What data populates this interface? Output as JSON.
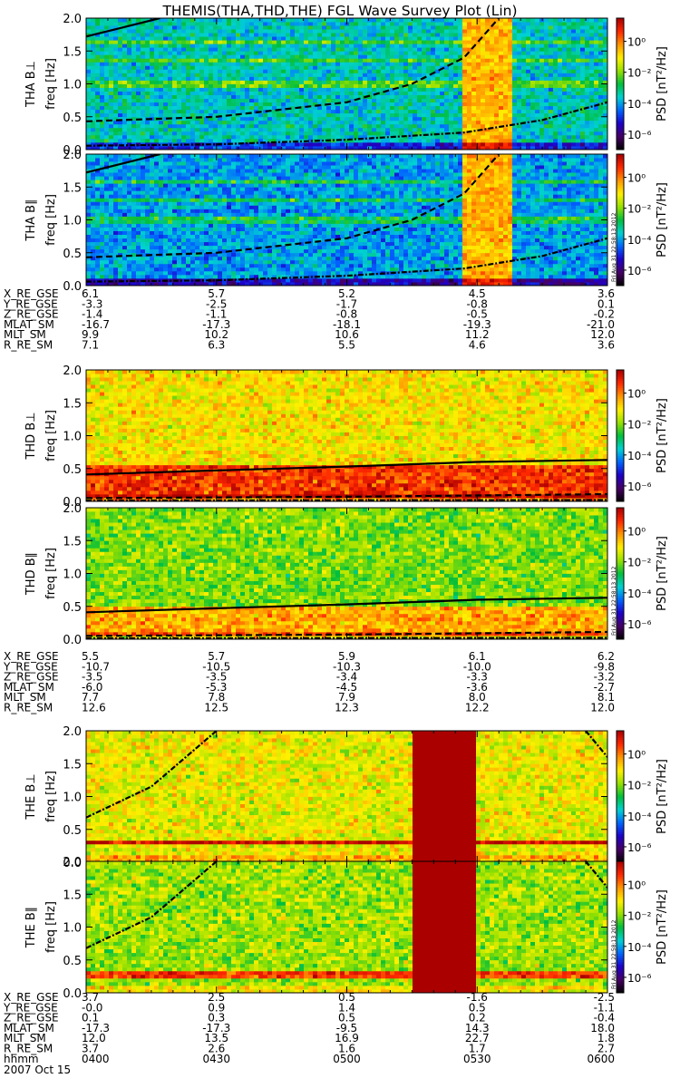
{
  "title": "THEMIS(THA,THD,THE) FGL Wave Survey Plot (Lin)",
  "colorbar": {
    "label": "PSD [nT²/Hz]",
    "ticks": [
      "10⁰",
      "10⁻²",
      "10⁻⁴",
      "10⁻⁶"
    ]
  },
  "timestamp": "Fri Aug 31 22:58:13 2012",
  "time_axis": {
    "row_label": "hhmm",
    "ticks": [
      "0400",
      "0430",
      "0500",
      "0530",
      "0600"
    ],
    "date": "2007 Oct 15"
  },
  "ephemeris_labels": [
    "X_RE_GSE",
    "Y_RE_GSE",
    "Z_RE_GSE",
    "MLAT_SM",
    "MLT_SM",
    "R_RE_SM"
  ],
  "probes": [
    {
      "id": "THA",
      "ephemeris": [
        [
          "6.1",
          "5.7",
          "5.2",
          "4.5",
          "3.6"
        ],
        [
          "-3.3",
          "-2.5",
          "-1.7",
          "-0.8",
          "0.1"
        ],
        [
          "-1.4",
          "-1.1",
          "-0.8",
          "-0.5",
          "-0.2"
        ],
        [
          "-16.7",
          "-17.3",
          "-18.1",
          "-19.3",
          "-21.0"
        ],
        [
          "9.9",
          "10.2",
          "10.6",
          "11.2",
          "12.0"
        ],
        [
          "7.1",
          "6.3",
          "5.5",
          "4.6",
          "3.6"
        ]
      ]
    },
    {
      "id": "THD",
      "ephemeris": [
        [
          "5.5",
          "5.7",
          "5.9",
          "6.1",
          "6.2"
        ],
        [
          "-10.7",
          "-10.5",
          "-10.3",
          "-10.0",
          "-9.8"
        ],
        [
          "-3.5",
          "-3.5",
          "-3.4",
          "-3.3",
          "-3.2"
        ],
        [
          "-6.0",
          "-5.3",
          "-4.5",
          "-3.6",
          "-2.7"
        ],
        [
          "7.7",
          "7.8",
          "7.9",
          "8.0",
          "8.1"
        ],
        [
          "12.6",
          "12.5",
          "12.3",
          "12.2",
          "12.0"
        ]
      ]
    },
    {
      "id": "THE",
      "ephemeris": [
        [
          "3.7",
          "2.5",
          "0.5",
          "-1.6",
          "-2.5"
        ],
        [
          "-0.0",
          "0.9",
          "1.4",
          "0.5",
          "-1.1"
        ],
        [
          "0.1",
          "0.3",
          "0.5",
          "0.2",
          "-0.4"
        ],
        [
          "-17.3",
          "-17.3",
          "-9.5",
          "14.3",
          "18.0"
        ],
        [
          "12.0",
          "13.5",
          "16.9",
          "22.7",
          "1.8"
        ],
        [
          "3.7",
          "2.6",
          "1.6",
          "1.7",
          "2.7"
        ]
      ]
    }
  ],
  "chart_data": {
    "type": "heatmap",
    "title": "THEMIS(THA,THD,THE) FGL Wave Survey Plot (Lin)",
    "xlabel": "hhmm",
    "ylabel": "freq [Hz]",
    "x_range": [
      "0400",
      "0600"
    ],
    "ylim": [
      0,
      2.0
    ],
    "y_ticks": [
      "0.0",
      "0.5",
      "1.0",
      "1.5",
      "2.0"
    ],
    "color_scale": "log",
    "colorbar_label": "PSD [nT²/Hz]",
    "colorbar_range": [
      1e-07,
      30
    ],
    "panels": [
      {
        "probe": "THA",
        "component": "B⊥",
        "ylabel": "THA B⊥",
        "ylabel_unit": "freq [Hz]",
        "features": {
          "background_level": -3.5,
          "burst_interval": [
            "0527",
            "0538"
          ],
          "burst_level": 0.5,
          "persistent_lines_hz": [
            1.0,
            1.35,
            1.65
          ]
        }
      },
      {
        "probe": "THA",
        "component": "B∥",
        "ylabel": "THA B∥",
        "ylabel_unit": "freq [Hz]",
        "features": {
          "background_level": -4,
          "burst_interval": [
            "0527",
            "0538"
          ],
          "burst_level": 0.5,
          "persistent_lines_hz": [
            1.0,
            1.3,
            1.6
          ]
        }
      },
      {
        "probe": "THD",
        "component": "B⊥",
        "ylabel": "THD B⊥",
        "ylabel_unit": "freq [Hz]",
        "features": {
          "background_level": -1,
          "enhanced_band_hz": [
            0.05,
            0.55
          ]
        }
      },
      {
        "probe": "THD",
        "component": "B∥",
        "ylabel": "THD B∥",
        "ylabel_unit": "freq [Hz]",
        "features": {
          "background_level": -2,
          "enhanced_band_hz": [
            0.05,
            0.5
          ]
        }
      },
      {
        "probe": "THE",
        "component": "B⊥",
        "ylabel": "THE B⊥",
        "ylabel_unit": "freq [Hz]",
        "features": {
          "background_level": -1.2,
          "saturated_interval": [
            "0515",
            "0530"
          ],
          "band_hz": 0.3
        }
      },
      {
        "probe": "THE",
        "component": "B∥",
        "ylabel": "THE B∥",
        "ylabel_unit": "freq [Hz]",
        "features": {
          "background_level": -1.8,
          "saturated_interval": [
            "0515",
            "0530"
          ],
          "band_hz": 0.28
        }
      }
    ],
    "gyrofrequency_curves": {
      "THA": [
        {
          "style": "solid",
          "points": [
            [
              "0400",
              1.72
            ],
            [
              "0417",
              2.0
            ]
          ]
        },
        {
          "style": "dashed",
          "points": [
            [
              "0400",
              0.43
            ],
            [
              "0430",
              0.5
            ],
            [
              "0500",
              0.72
            ],
            [
              "0515",
              1.0
            ],
            [
              "0527",
              1.4
            ],
            [
              "0535",
              2.0
            ]
          ]
        },
        {
          "style": "dash-dot",
          "points": [
            [
              "0400",
              0.06
            ],
            [
              "0430",
              0.08
            ],
            [
              "0500",
              0.15
            ],
            [
              "0527",
              0.26
            ],
            [
              "0545",
              0.45
            ],
            [
              "0600",
              0.72
            ]
          ]
        }
      ],
      "THD": [
        {
          "style": "solid",
          "points": [
            [
              "0400",
              0.41
            ],
            [
              "0430",
              0.47
            ],
            [
              "0500",
              0.53
            ],
            [
              "0530",
              0.6
            ],
            [
              "0600",
              0.63
            ]
          ]
        },
        {
          "style": "dashed",
          "points": [
            [
              "0400",
              0.05
            ],
            [
              "0500",
              0.07
            ],
            [
              "0600",
              0.11
            ]
          ]
        },
        {
          "style": "dash-dot",
          "points": [
            [
              "0400",
              0.012
            ],
            [
              "0600",
              0.02
            ]
          ]
        }
      ],
      "THE": [
        {
          "style": "dash-dot",
          "points": [
            [
              "0400",
              0.68
            ],
            [
              "0415",
              1.15
            ],
            [
              "0430",
              2.0
            ]
          ]
        },
        {
          "style": "dash-dot",
          "points": [
            [
              "0555",
              2.0
            ],
            [
              "0600",
              1.6
            ]
          ]
        }
      ]
    }
  }
}
